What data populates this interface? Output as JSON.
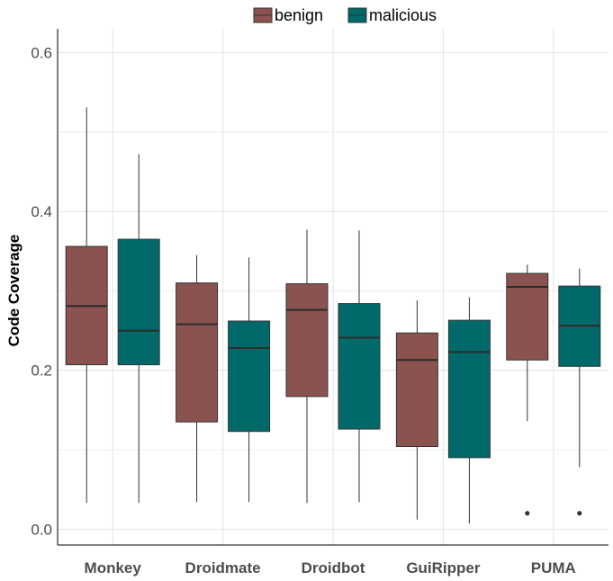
{
  "chart_data": {
    "type": "box",
    "ylabel": "Code Coverage",
    "xlabel": "",
    "ylim": [
      -0.02,
      0.63
    ],
    "yticks": [
      0.0,
      0.2,
      0.4,
      0.6
    ],
    "ytick_labels": [
      "0.0",
      "0.2",
      "0.4",
      "0.6"
    ],
    "categories": [
      "Monkey",
      "Droidmate",
      "Droidbot",
      "GuiRipper",
      "PUMA"
    ],
    "legend_position": "top",
    "grid": true,
    "series": [
      {
        "name": "benign",
        "color": "#8b5350",
        "boxes": [
          {
            "min": 0.033,
            "q1": 0.207,
            "median": 0.281,
            "q3": 0.356,
            "max": 0.531,
            "outliers": []
          },
          {
            "min": 0.034,
            "q1": 0.135,
            "median": 0.258,
            "q3": 0.31,
            "max": 0.345,
            "outliers": []
          },
          {
            "min": 0.033,
            "q1": 0.167,
            "median": 0.276,
            "q3": 0.309,
            "max": 0.377,
            "outliers": []
          },
          {
            "min": 0.012,
            "q1": 0.104,
            "median": 0.213,
            "q3": 0.247,
            "max": 0.288,
            "outliers": []
          },
          {
            "min": 0.136,
            "q1": 0.213,
            "median": 0.305,
            "q3": 0.322,
            "max": 0.333,
            "outliers": [
              0.02
            ]
          }
        ]
      },
      {
        "name": "malicious",
        "color": "#006a6b",
        "boxes": [
          {
            "min": 0.033,
            "q1": 0.207,
            "median": 0.25,
            "q3": 0.365,
            "max": 0.472,
            "outliers": []
          },
          {
            "min": 0.034,
            "q1": 0.123,
            "median": 0.228,
            "q3": 0.262,
            "max": 0.342,
            "outliers": []
          },
          {
            "min": 0.034,
            "q1": 0.126,
            "median": 0.241,
            "q3": 0.284,
            "max": 0.376,
            "outliers": []
          },
          {
            "min": 0.007,
            "q1": 0.09,
            "median": 0.223,
            "q3": 0.263,
            "max": 0.292,
            "outliers": []
          },
          {
            "min": 0.078,
            "q1": 0.205,
            "median": 0.256,
            "q3": 0.306,
            "max": 0.328,
            "outliers": [
              0.02
            ]
          }
        ]
      }
    ]
  }
}
